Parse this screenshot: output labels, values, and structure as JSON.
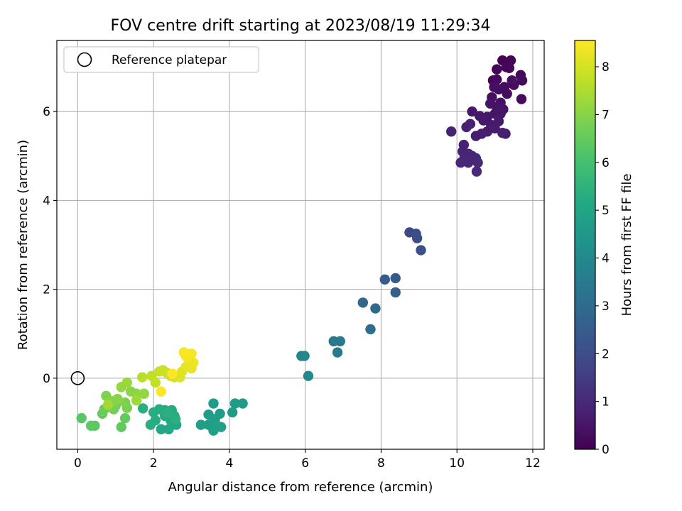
{
  "chart_data": {
    "type": "scatter",
    "title": "FOV centre drift starting at 2023/08/19 11:29:34",
    "xlabel": "Angular distance from reference (arcmin)",
    "ylabel": "Rotation from reference (arcmin)",
    "xlim": [
      -0.55,
      12.3
    ],
    "ylim": [
      -1.6,
      7.6
    ],
    "xticks": [
      0,
      2,
      4,
      6,
      8,
      10,
      12
    ],
    "yticks": [
      0,
      2,
      4,
      6
    ],
    "grid": true,
    "legend": {
      "placement": "top-left",
      "entries": [
        "Reference platepar"
      ]
    },
    "reference_point": {
      "x": 0,
      "y": 0,
      "label": "Reference platepar"
    },
    "colorbar": {
      "label": "Hours from first FF file",
      "colormap": "viridis",
      "range": [
        0,
        8.55
      ],
      "ticks": [
        0,
        1,
        2,
        3,
        4,
        5,
        6,
        7,
        8
      ]
    },
    "points": [
      {
        "x": 11.2,
        "y": 7.15,
        "c": 0.05
      },
      {
        "x": 11.42,
        "y": 7.15,
        "c": 0.08
      },
      {
        "x": 11.05,
        "y": 6.95,
        "c": 0.1
      },
      {
        "x": 11.3,
        "y": 7.0,
        "c": 0.12
      },
      {
        "x": 11.38,
        "y": 6.98,
        "c": 0.14
      },
      {
        "x": 10.95,
        "y": 6.7,
        "c": 0.16
      },
      {
        "x": 11.05,
        "y": 6.72,
        "c": 0.18
      },
      {
        "x": 11.68,
        "y": 6.82,
        "c": 0.2
      },
      {
        "x": 11.72,
        "y": 6.7,
        "c": 0.22
      },
      {
        "x": 11.5,
        "y": 6.6,
        "c": 0.24
      },
      {
        "x": 11.7,
        "y": 6.28,
        "c": 0.26
      },
      {
        "x": 11.25,
        "y": 6.55,
        "c": 0.28
      },
      {
        "x": 11.32,
        "y": 6.4,
        "c": 0.3
      },
      {
        "x": 11.1,
        "y": 6.5,
        "c": 0.32
      },
      {
        "x": 10.98,
        "y": 6.55,
        "c": 0.34
      },
      {
        "x": 11.45,
        "y": 6.7,
        "c": 0.36
      },
      {
        "x": 10.92,
        "y": 6.32,
        "c": 0.38
      },
      {
        "x": 11.15,
        "y": 6.2,
        "c": 0.4
      },
      {
        "x": 10.88,
        "y": 6.18,
        "c": 0.42
      },
      {
        "x": 11.05,
        "y": 6.1,
        "c": 0.44
      },
      {
        "x": 11.22,
        "y": 6.05,
        "c": 0.46
      },
      {
        "x": 11.15,
        "y": 5.95,
        "c": 0.48
      },
      {
        "x": 11.0,
        "y": 5.95,
        "c": 0.5
      },
      {
        "x": 10.8,
        "y": 5.88,
        "c": 0.52
      },
      {
        "x": 10.6,
        "y": 5.9,
        "c": 0.54
      },
      {
        "x": 10.4,
        "y": 6.0,
        "c": 0.56
      },
      {
        "x": 10.7,
        "y": 5.8,
        "c": 0.58
      },
      {
        "x": 11.1,
        "y": 5.78,
        "c": 0.6
      },
      {
        "x": 10.9,
        "y": 5.7,
        "c": 0.62
      },
      {
        "x": 11.0,
        "y": 5.62,
        "c": 0.64
      },
      {
        "x": 10.8,
        "y": 5.55,
        "c": 0.66
      },
      {
        "x": 10.65,
        "y": 5.5,
        "c": 0.68
      },
      {
        "x": 10.5,
        "y": 5.45,
        "c": 0.7
      },
      {
        "x": 11.2,
        "y": 5.52,
        "c": 0.72
      },
      {
        "x": 11.28,
        "y": 5.5,
        "c": 0.74
      },
      {
        "x": 10.35,
        "y": 5.72,
        "c": 0.76
      },
      {
        "x": 10.25,
        "y": 5.65,
        "c": 0.78
      },
      {
        "x": 9.85,
        "y": 5.55,
        "c": 0.8
      },
      {
        "x": 10.18,
        "y": 5.25,
        "c": 0.82
      },
      {
        "x": 10.15,
        "y": 5.1,
        "c": 0.84
      },
      {
        "x": 10.3,
        "y": 5.05,
        "c": 0.86
      },
      {
        "x": 10.4,
        "y": 5.0,
        "c": 0.88
      },
      {
        "x": 10.5,
        "y": 4.95,
        "c": 0.9
      },
      {
        "x": 10.2,
        "y": 4.98,
        "c": 0.92
      },
      {
        "x": 10.1,
        "y": 4.85,
        "c": 0.94
      },
      {
        "x": 10.3,
        "y": 4.85,
        "c": 0.96
      },
      {
        "x": 10.55,
        "y": 4.85,
        "c": 0.98
      },
      {
        "x": 10.52,
        "y": 4.65,
        "c": 1.0
      },
      {
        "x": 8.75,
        "y": 3.28,
        "c": 1.9
      },
      {
        "x": 8.92,
        "y": 3.25,
        "c": 1.95
      },
      {
        "x": 8.95,
        "y": 3.15,
        "c": 2.0
      },
      {
        "x": 9.05,
        "y": 2.88,
        "c": 2.05
      },
      {
        "x": 8.38,
        "y": 2.25,
        "c": 2.4
      },
      {
        "x": 8.1,
        "y": 2.22,
        "c": 2.45
      },
      {
        "x": 8.38,
        "y": 1.93,
        "c": 2.55
      },
      {
        "x": 7.52,
        "y": 1.7,
        "c": 2.85
      },
      {
        "x": 7.85,
        "y": 1.57,
        "c": 2.9
      },
      {
        "x": 7.72,
        "y": 1.1,
        "c": 3.0
      },
      {
        "x": 6.75,
        "y": 0.83,
        "c": 3.4
      },
      {
        "x": 6.92,
        "y": 0.83,
        "c": 3.45
      },
      {
        "x": 6.85,
        "y": 0.58,
        "c": 3.5
      },
      {
        "x": 5.9,
        "y": 0.5,
        "c": 3.85
      },
      {
        "x": 5.98,
        "y": 0.5,
        "c": 3.9
      },
      {
        "x": 6.08,
        "y": 0.05,
        "c": 4.0
      },
      {
        "x": 4.35,
        "y": -0.57,
        "c": 4.6
      },
      {
        "x": 4.15,
        "y": -0.57,
        "c": 4.62
      },
      {
        "x": 3.58,
        "y": -0.57,
        "c": 4.64
      },
      {
        "x": 4.08,
        "y": -0.77,
        "c": 4.66
      },
      {
        "x": 3.45,
        "y": -0.82,
        "c": 4.68
      },
      {
        "x": 3.75,
        "y": -0.8,
        "c": 4.7
      },
      {
        "x": 3.62,
        "y": -0.92,
        "c": 4.72
      },
      {
        "x": 3.45,
        "y": -1.05,
        "c": 4.74
      },
      {
        "x": 3.25,
        "y": -1.05,
        "c": 4.76
      },
      {
        "x": 3.65,
        "y": -1.05,
        "c": 4.78
      },
      {
        "x": 3.78,
        "y": -1.1,
        "c": 4.8
      },
      {
        "x": 3.58,
        "y": -1.18,
        "c": 4.82
      },
      {
        "x": 2.6,
        "y": -1.05,
        "c": 5.1
      },
      {
        "x": 2.4,
        "y": -1.15,
        "c": 5.12
      },
      {
        "x": 2.2,
        "y": -1.15,
        "c": 5.14
      },
      {
        "x": 2.45,
        "y": -0.95,
        "c": 5.16
      },
      {
        "x": 2.55,
        "y": -0.85,
        "c": 5.18
      },
      {
        "x": 2.3,
        "y": -0.85,
        "c": 5.2
      },
      {
        "x": 2.48,
        "y": -0.72,
        "c": 5.22
      },
      {
        "x": 2.3,
        "y": -0.72,
        "c": 5.24
      },
      {
        "x": 2.15,
        "y": -0.7,
        "c": 5.26
      },
      {
        "x": 2.0,
        "y": -0.77,
        "c": 5.28
      },
      {
        "x": 2.05,
        "y": -0.95,
        "c": 5.3
      },
      {
        "x": 1.92,
        "y": -1.05,
        "c": 5.32
      },
      {
        "x": 1.72,
        "y": -0.68,
        "c": 5.34
      },
      {
        "x": 2.58,
        "y": -0.92,
        "c": 5.36
      },
      {
        "x": 2.38,
        "y": -0.78,
        "c": 5.38
      },
      {
        "x": 0.1,
        "y": -0.9,
        "c": 6.3
      },
      {
        "x": 0.45,
        "y": -1.07,
        "c": 6.35
      },
      {
        "x": 0.35,
        "y": -1.07,
        "c": 6.4
      },
      {
        "x": 1.15,
        "y": -1.1,
        "c": 6.45
      },
      {
        "x": 1.25,
        "y": -0.9,
        "c": 6.5
      },
      {
        "x": 0.65,
        "y": -0.8,
        "c": 6.55
      },
      {
        "x": 0.7,
        "y": -0.7,
        "c": 6.6
      },
      {
        "x": 0.8,
        "y": -0.65,
        "c": 6.65
      },
      {
        "x": 0.95,
        "y": -0.7,
        "c": 6.7
      },
      {
        "x": 1.0,
        "y": -0.62,
        "c": 6.75
      },
      {
        "x": 1.3,
        "y": -0.67,
        "c": 6.8
      },
      {
        "x": 1.25,
        "y": -0.55,
        "c": 6.85
      },
      {
        "x": 0.75,
        "y": -0.4,
        "c": 6.9
      },
      {
        "x": 0.9,
        "y": -0.52,
        "c": 6.95
      },
      {
        "x": 1.05,
        "y": -0.47,
        "c": 7.0
      },
      {
        "x": 1.4,
        "y": -0.3,
        "c": 7.05
      },
      {
        "x": 1.55,
        "y": -0.35,
        "c": 7.1
      },
      {
        "x": 1.75,
        "y": -0.35,
        "c": 7.15
      },
      {
        "x": 1.15,
        "y": -0.2,
        "c": 7.2
      },
      {
        "x": 1.3,
        "y": -0.1,
        "c": 7.25
      },
      {
        "x": 1.55,
        "y": -0.5,
        "c": 7.3
      },
      {
        "x": 0.8,
        "y": -0.6,
        "c": 7.35
      },
      {
        "x": 1.7,
        "y": 0.02,
        "c": 7.65
      },
      {
        "x": 1.95,
        "y": 0.05,
        "c": 7.7
      },
      {
        "x": 2.05,
        "y": -0.1,
        "c": 7.75
      },
      {
        "x": 2.15,
        "y": 0.15,
        "c": 7.8
      },
      {
        "x": 2.25,
        "y": 0.18,
        "c": 7.85
      },
      {
        "x": 2.35,
        "y": 0.12,
        "c": 7.9
      },
      {
        "x": 2.45,
        "y": 0.05,
        "c": 7.95
      },
      {
        "x": 2.55,
        "y": 0.02,
        "c": 8.0
      },
      {
        "x": 2.65,
        "y": 0.05,
        "c": 8.05
      },
      {
        "x": 2.7,
        "y": 0.02,
        "c": 8.1
      },
      {
        "x": 2.75,
        "y": 0.15,
        "c": 8.15
      },
      {
        "x": 2.85,
        "y": 0.25,
        "c": 8.2
      },
      {
        "x": 2.95,
        "y": 0.3,
        "c": 8.25
      },
      {
        "x": 3.0,
        "y": 0.22,
        "c": 8.28
      },
      {
        "x": 3.05,
        "y": 0.35,
        "c": 8.3
      },
      {
        "x": 2.9,
        "y": 0.45,
        "c": 8.35
      },
      {
        "x": 3.0,
        "y": 0.55,
        "c": 8.4
      },
      {
        "x": 2.8,
        "y": 0.58,
        "c": 8.45
      },
      {
        "x": 2.85,
        "y": 0.5,
        "c": 8.48
      },
      {
        "x": 2.2,
        "y": -0.3,
        "c": 8.5
      },
      {
        "x": 2.5,
        "y": 0.1,
        "c": 8.52
      }
    ]
  }
}
